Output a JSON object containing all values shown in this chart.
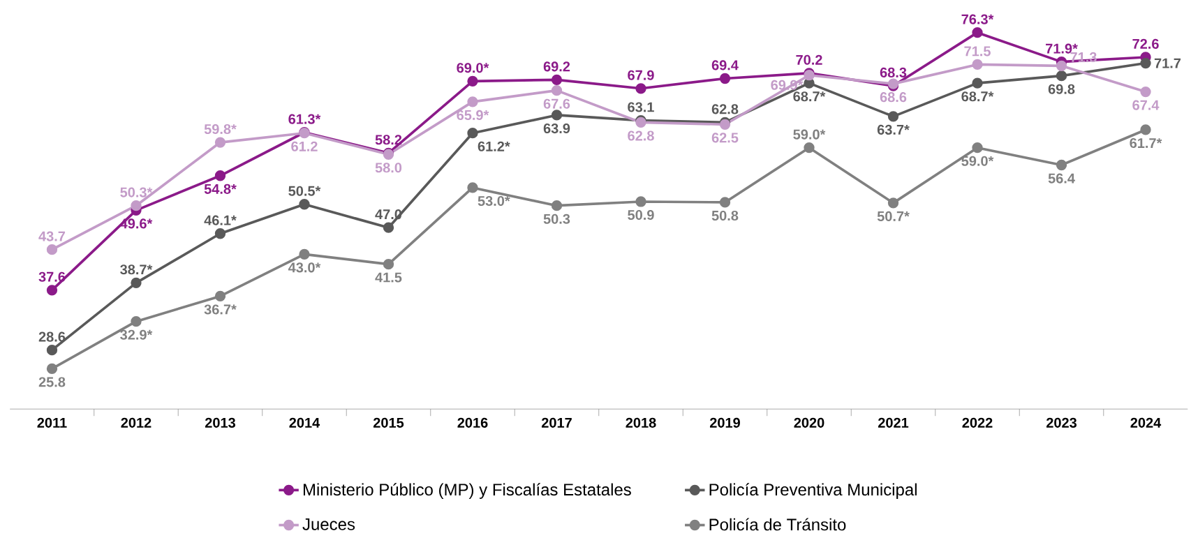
{
  "chart_data": {
    "type": "line",
    "categories": [
      "2011",
      "2012",
      "2013",
      "2014",
      "2015",
      "2016",
      "2017",
      "2018",
      "2019",
      "2020",
      "2021",
      "2022",
      "2023",
      "2024"
    ],
    "tick_labels": "x",
    "grid": false,
    "legend": "bottom",
    "marker": "circle",
    "line_style": "solid",
    "series": [
      {
        "name": "Ministerio Público (MP) y Fiscalías Estatales",
        "color": "#8b1a89",
        "values": [
          37.6,
          49.6,
          54.8,
          61.3,
          58.2,
          69.0,
          69.2,
          67.9,
          69.4,
          70.2,
          68.3,
          76.3,
          71.9,
          72.6
        ],
        "value_labels": [
          "37.6",
          "49.6*",
          "54.8*",
          "61.3*",
          "58.2",
          "69.0*",
          "69.2",
          "67.9",
          "69.4",
          "70.2",
          "68.3",
          "76.3*",
          "71.9*",
          "72.6"
        ]
      },
      {
        "name": "Policía Preventiva Municipal",
        "color": "#595959",
        "values": [
          28.6,
          38.7,
          46.1,
          50.5,
          47.0,
          61.2,
          63.9,
          63.1,
          62.8,
          68.7,
          63.7,
          68.7,
          69.8,
          71.7
        ],
        "value_labels": [
          "28.6",
          "38.7*",
          "46.1*",
          "50.5*",
          "47.0",
          "61.2*",
          "63.9",
          "63.1",
          "62.8",
          "68.7*",
          "63.7*",
          "68.7*",
          "69.8",
          "71.7"
        ]
      },
      {
        "name": "Jueces",
        "color": "#c39bc8",
        "values": [
          43.7,
          50.3,
          59.8,
          61.2,
          58.0,
          65.9,
          67.6,
          62.8,
          62.5,
          69.9,
          68.6,
          71.5,
          71.3,
          67.4
        ],
        "value_labels": [
          "43.7",
          "50.3*",
          "59.8*",
          "61.2",
          "58.0",
          "65.9*",
          "67.6",
          "62.8",
          "62.5",
          "69.9*",
          "68.6",
          "71.5",
          "71.3",
          "67.4"
        ]
      },
      {
        "name": "Policía de Tránsito",
        "color": "#808080",
        "values": [
          25.8,
          32.9,
          36.7,
          43.0,
          41.5,
          53.0,
          50.3,
          50.9,
          50.8,
          59.0,
          50.7,
          59.0,
          56.4,
          61.7
        ],
        "value_labels": [
          "25.8",
          "32.9*",
          "36.7*",
          "43.0*",
          "41.5",
          "53.0*",
          "50.3",
          "50.9",
          "50.8",
          "59.0*",
          "50.7*",
          "59.0*",
          "56.4",
          "61.7*"
        ]
      }
    ]
  }
}
